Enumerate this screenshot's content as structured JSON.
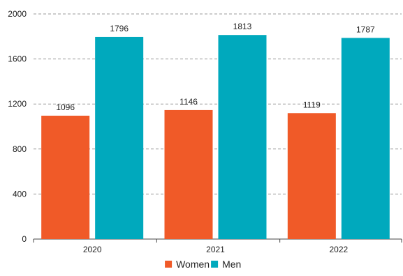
{
  "chart_data": {
    "type": "bar",
    "title": "",
    "xlabel": "",
    "ylabel": "",
    "categories": [
      "2020",
      "2021",
      "2022"
    ],
    "series": [
      {
        "name": "Women",
        "values": [
          1096,
          1146,
          1119
        ],
        "color": "#F05A28"
      },
      {
        "name": "Men",
        "values": [
          1796,
          1813,
          1787
        ],
        "color": "#00A9BD"
      }
    ],
    "ylim": [
      0,
      2000
    ],
    "yticks": [
      "0",
      "400",
      "800",
      "1200",
      "1600",
      "2000"
    ],
    "grid": true,
    "grid_style": "dashed",
    "legend_position": "bottom-center",
    "data_labels": true
  }
}
